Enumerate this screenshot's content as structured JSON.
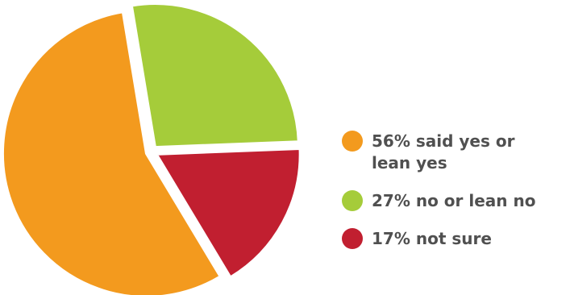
{
  "chart_data": {
    "type": "pie",
    "title": "",
    "slices": [
      {
        "label": "56% said yes or lean yes",
        "value": 56,
        "color": "#F39A1E"
      },
      {
        "label": "27% no or lean no",
        "value": 27,
        "color": "#A5CC3A"
      },
      {
        "label": "17% not sure",
        "value": 17,
        "color": "#C11F30"
      }
    ],
    "legend_position": "right"
  },
  "legend": {
    "items": [
      {
        "label": "56% said yes or lean yes",
        "color": "#F39A1E"
      },
      {
        "label": "27% no or lean no",
        "color": "#A5CC3A"
      },
      {
        "label": "17% not sure",
        "color": "#C11F30"
      }
    ]
  }
}
